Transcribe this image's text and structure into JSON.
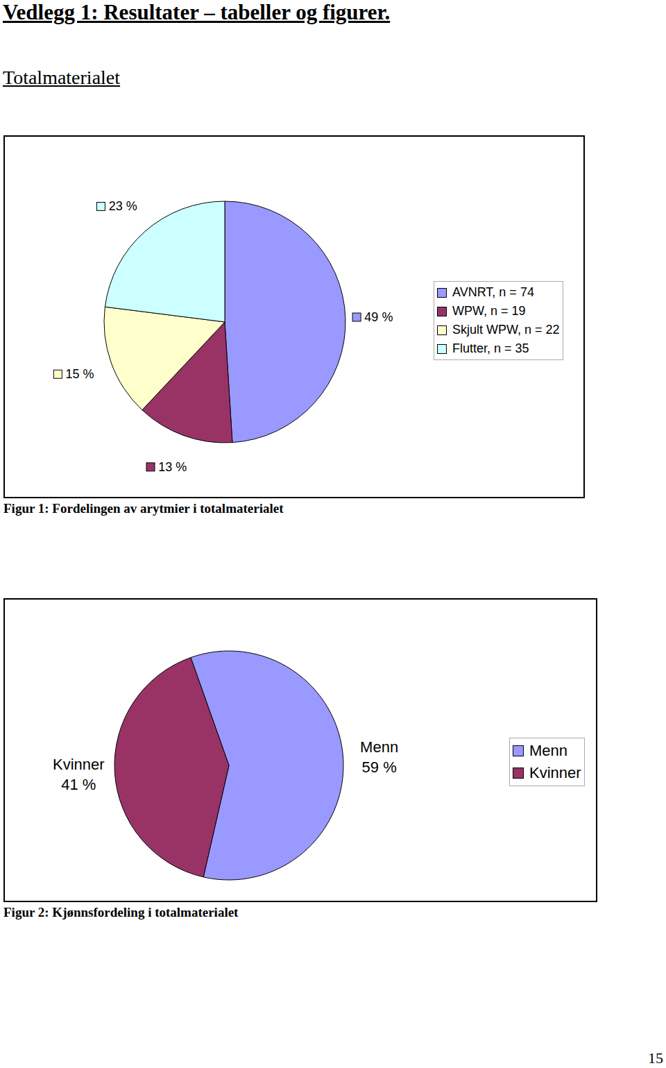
{
  "header": {
    "title": "Vedlegg 1: Resultater – tabeller og figurer.",
    "subtitle": "Totalmaterialet"
  },
  "chart_data": [
    {
      "type": "pie",
      "title": "Figur 1: Fordelingen av arytmier i totalmaterialet",
      "categories": [
        "AVNRT, n = 74",
        "WPW, n = 19",
        "Skjult WPW, n = 22",
        "Flutter, n = 35"
      ],
      "values": [
        49,
        13,
        15,
        23
      ],
      "value_labels": [
        "49 %",
        "13 %",
        "15 %",
        "23 %"
      ],
      "colors": [
        "#9999ff",
        "#993366",
        "#ffffcc",
        "#ccffff"
      ],
      "data_labels": true,
      "legend": "right"
    },
    {
      "type": "pie",
      "title": "Figur 2: Kjønnsfordeling i totalmaterialet",
      "categories": [
        "Menn",
        "Kvinner"
      ],
      "values": [
        59,
        41
      ],
      "value_labels": [
        "Menn\n59 %",
        "Kvinner\n41 %"
      ],
      "colors": [
        "#9999ff",
        "#993366"
      ],
      "data_labels": true,
      "legend": "right"
    }
  ],
  "page_number": 15
}
